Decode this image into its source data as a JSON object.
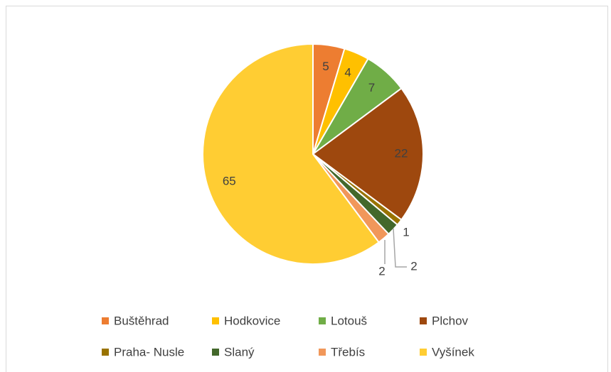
{
  "chart_data": {
    "type": "pie",
    "categories": [
      "Buštěhrad",
      "Hodkovice",
      "Lotouš",
      "Plchov",
      "Praha- Nusle",
      "Slaný",
      "Třebís",
      "Vyšínek"
    ],
    "values": [
      5,
      4,
      7,
      22,
      1,
      2,
      2,
      65
    ],
    "colors": [
      "#ED7D31",
      "#FFC000",
      "#70AD47",
      "#9E480E",
      "#997300",
      "#43682B",
      "#F1975A",
      "#FFCD33"
    ],
    "legend": "bottom"
  }
}
